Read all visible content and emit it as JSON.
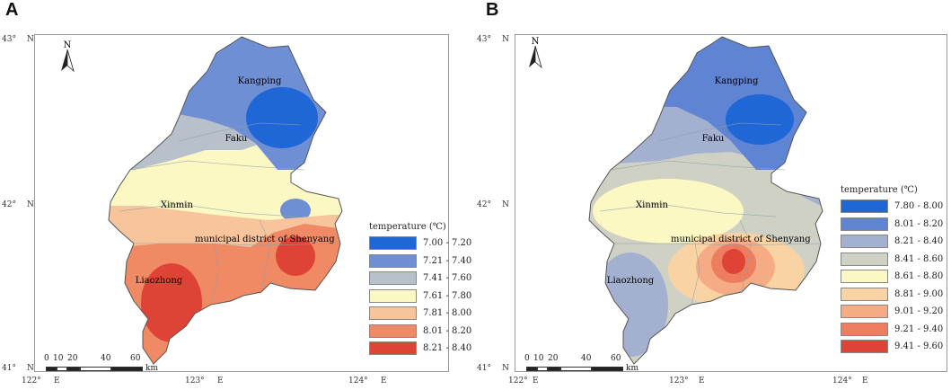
{
  "panels": [
    {
      "letter": "A",
      "coords": {
        "lat_top": "43°",
        "lat_mid": "42°",
        "lat_bot": "41°",
        "n": "N",
        "lon_1": "122°",
        "lon_2": "123°",
        "lon_3": "124°",
        "e": "E"
      },
      "north": "N",
      "places": [
        "Kangping",
        "Faku",
        "Xinmin",
        "municipal district of Shenyang",
        "Liaozhong"
      ],
      "scale": {
        "ticks": [
          "0",
          "10",
          "20",
          "40",
          "60"
        ],
        "unit": "km"
      },
      "legend": {
        "title": "temperature (℃)",
        "items": [
          {
            "label": "7.00 - 7.20",
            "color": "#1f66d6"
          },
          {
            "label": "7.21 - 7.40",
            "color": "#6f8fd4"
          },
          {
            "label": "7.41 - 7.60",
            "color": "#b8c0cc"
          },
          {
            "label": "7.61 - 7.80",
            "color": "#fbf8c4"
          },
          {
            "label": "7.81 - 8.00",
            "color": "#f8c49b"
          },
          {
            "label": "8.01 - 8.20",
            "color": "#f08a64"
          },
          {
            "label": "8.21 - 8.40",
            "color": "#df4336"
          }
        ]
      }
    },
    {
      "letter": "B",
      "coords": {
        "lat_top": "43°",
        "lat_mid": "42°",
        "lat_bot": "41°",
        "n": "N",
        "lon_1": "122°",
        "lon_2": "123°",
        "lon_3": "124°",
        "e": "E"
      },
      "north": "N",
      "places": [
        "Kangping",
        "Faku",
        "Xinmin",
        "municipal district of Shenyang",
        "Liaozhong"
      ],
      "scale": {
        "ticks": [
          "0",
          "10",
          "20",
          "40",
          "60"
        ],
        "unit": "km"
      },
      "legend": {
        "title": "temperature (℃)",
        "items": [
          {
            "label": "7.80 - 8.00",
            "color": "#1f66d6"
          },
          {
            "label": "8.01 - 8.20",
            "color": "#5f84d3"
          },
          {
            "label": "8.21 - 8.40",
            "color": "#a3b0d0"
          },
          {
            "label": "8.41 - 8.60",
            "color": "#cfd1c4"
          },
          {
            "label": "8.61 - 8.80",
            "color": "#fbf8c4"
          },
          {
            "label": "8.81 - 9.00",
            "color": "#f9d3a3"
          },
          {
            "label": "9.01 - 9.20",
            "color": "#f5ab84"
          },
          {
            "label": "9.21 - 9.40",
            "color": "#ec7d5e"
          },
          {
            "label": "9.41 - 9.60",
            "color": "#df4336"
          }
        ]
      }
    }
  ]
}
